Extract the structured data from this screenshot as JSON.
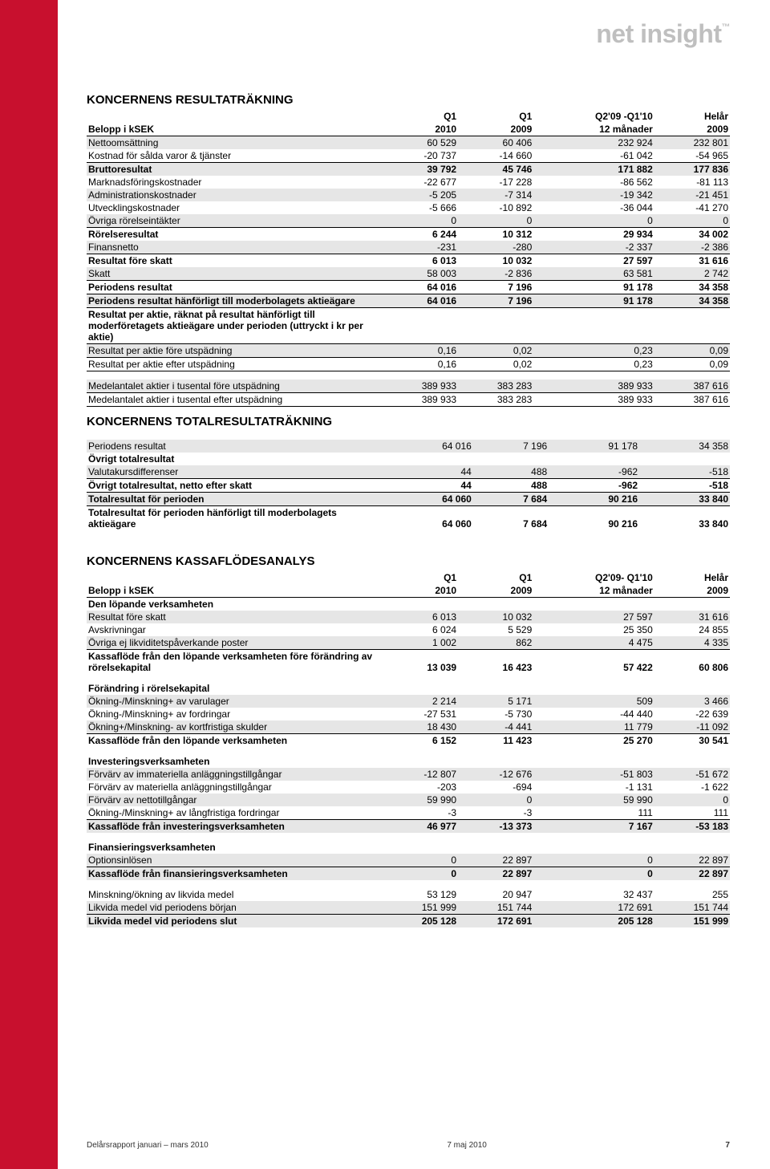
{
  "logo": "net insight",
  "sections": {
    "income": "KONCERNENS RESULTATRÄKNING",
    "total": "KONCERNENS TOTALRESULTATRÄKNING",
    "cashflow": "KONCERNENS KASSAFLÖDESANALYS"
  },
  "col_headers": {
    "c1a": "Q1",
    "c1b": "2010",
    "c2a": "Q1",
    "c2b": "2009",
    "c3a": "Q2'09 -Q1'10",
    "c3b": "12 månader",
    "c3a_cf": "Q2'09- Q1'10",
    "c4a": "Helår",
    "c4b": "2009",
    "row_label": "Belopp i kSEK"
  },
  "income_rows": [
    {
      "label": "Nettoomsättning",
      "v": [
        "60 529",
        "60 406",
        "232 924",
        "232 801"
      ],
      "shade": true
    },
    {
      "label": "Kostnad för sålda varor & tjänster",
      "v": [
        "-20 737",
        "-14 660",
        "-61 042",
        "-54 965"
      ]
    },
    {
      "label": "Bruttoresultat",
      "v": [
        "39 792",
        "45 746",
        "171 882",
        "177 836"
      ],
      "bold": true,
      "shade": true,
      "bt": true
    },
    {
      "label": "Marknadsföringskostnader",
      "v": [
        "-22 677",
        "-17 228",
        "-86 562",
        "-81 113"
      ]
    },
    {
      "label": "Administrationskostnader",
      "v": [
        "-5 205",
        "-7 314",
        "-19 342",
        "-21 451"
      ],
      "shade": true
    },
    {
      "label": "Utvecklingskostnader",
      "v": [
        "-5 666",
        "-10 892",
        "-36 044",
        "-41 270"
      ]
    },
    {
      "label": "Övriga rörelseintäkter",
      "v": [
        "0",
        "0",
        "0",
        "0"
      ],
      "shade": true
    },
    {
      "label": "Rörelseresultat",
      "v": [
        "6 244",
        "10 312",
        "29 934",
        "34 002"
      ],
      "bold": true,
      "bt": true
    },
    {
      "label": "Finansnetto",
      "v": [
        "-231",
        "-280",
        "-2 337",
        "-2 386"
      ],
      "shade": true
    },
    {
      "label": "Resultat före skatt",
      "v": [
        "6 013",
        "10 032",
        "27 597",
        "31 616"
      ],
      "bold": true,
      "bt": true
    },
    {
      "label": "Skatt",
      "v": [
        "58 003",
        "-2 836",
        "63 581",
        "2 742"
      ],
      "shade": true,
      "bb": true
    },
    {
      "label": "Periodens resultat",
      "v": [
        "64 016",
        "7 196",
        "91 178",
        "34 358"
      ],
      "bold": true
    },
    {
      "label": "Periodens resultat hänförligt till moderbolagets aktieägare",
      "v": [
        "64 016",
        "7 196",
        "91 178",
        "34 358"
      ],
      "bold": true,
      "bt": true,
      "shade": true
    },
    {
      "label": "Resultat per aktie, räknat på resultat hänförligt till moderföretagets aktieägare under perioden (uttryckt i kr per aktie)",
      "v": [
        "",
        "",
        "",
        ""
      ],
      "bold": true,
      "bt": true,
      "bb": true
    },
    {
      "label": "Resultat per aktie före utspädning",
      "v": [
        "0,16",
        "0,02",
        "0,23",
        "0,09"
      ],
      "shade": true,
      "bb": true
    },
    {
      "label": "Resultat per aktie efter utspädning",
      "v": [
        "0,16",
        "0,02",
        "0,23",
        "0,09"
      ],
      "bb": true
    },
    {
      "spacer": true
    },
    {
      "label": "Medelantalet aktier i tusental före utspädning",
      "v": [
        "389 933",
        "383 283",
        "389 933",
        "387 616"
      ],
      "bb": true,
      "shade": true
    },
    {
      "label": "Medelantalet aktier i tusental efter utspädning",
      "v": [
        "389 933",
        "383 283",
        "389 933",
        "387 616"
      ],
      "bb": true
    }
  ],
  "total_rows": [
    {
      "spacer": true
    },
    {
      "label": "Periodens resultat",
      "v": [
        "64 016",
        "7 196",
        "91 178",
        "34 358"
      ],
      "shade": true
    },
    {
      "label": "Övrigt totalresultat",
      "v": [
        "",
        "",
        "",
        ""
      ],
      "bold": true
    },
    {
      "label": "Valutakursdifferenser",
      "v": [
        "44",
        "488",
        "-962",
        "-518"
      ],
      "shade": true,
      "bb": true
    },
    {
      "label": "Övrigt totalresultat, netto efter skatt",
      "v": [
        "44",
        "488",
        "-962",
        "-518"
      ],
      "bold": true
    },
    {
      "label": "Totalresultat för perioden",
      "v": [
        "64 060",
        "7 684",
        "90 216",
        "33 840"
      ],
      "bold": true,
      "shade": true,
      "bt": true
    },
    {
      "label": "Totalresultat för perioden hänförligt till moderbolagets aktieägare",
      "v": [
        "64 060",
        "7 684",
        "90 216",
        "33 840"
      ],
      "bold": true,
      "bt": true
    }
  ],
  "cf_rows": [
    {
      "label": "Den löpande verksamheten",
      "v": [
        "",
        "",
        "",
        ""
      ],
      "bold": true
    },
    {
      "label": "Resultat före skatt",
      "v": [
        "6 013",
        "10 032",
        "27 597",
        "31 616"
      ],
      "shade": true
    },
    {
      "label": "Avskrivningar",
      "v": [
        "6 024",
        "5 529",
        "25 350",
        "24 855"
      ]
    },
    {
      "label": "Övriga ej likviditetspåverkande poster",
      "v": [
        "1 002",
        "862",
        "4 475",
        "4 335"
      ],
      "shade": true,
      "bb": true
    },
    {
      "label": "Kassaflöde från den löpande verksamheten före förändring av rörelsekapital",
      "v": [
        "13 039",
        "16 423",
        "57 422",
        "60 806"
      ],
      "bold": true
    },
    {
      "spacer": true
    },
    {
      "label": "Förändring i rörelsekapital",
      "v": [
        "",
        "",
        "",
        ""
      ],
      "bold": true
    },
    {
      "label": "Ökning-/Minskning+ av varulager",
      "v": [
        "2 214",
        "5 171",
        "509",
        "3 466"
      ],
      "shade": true
    },
    {
      "label": "Ökning-/Minskning+ av fordringar",
      "v": [
        "-27 531",
        "-5 730",
        "-44 440",
        "-22 639"
      ]
    },
    {
      "label": "Ökning+/Minskning- av kortfristiga skulder",
      "v": [
        "18 430",
        "-4 441",
        "11 779",
        "-11 092"
      ],
      "shade": true,
      "bb": true
    },
    {
      "label": "Kassaflöde från den löpande verksamheten",
      "v": [
        "6 152",
        "11 423",
        "25 270",
        "30 541"
      ],
      "bold": true
    },
    {
      "spacer": true
    },
    {
      "label": "Investeringsverksamheten",
      "v": [
        "",
        "",
        "",
        ""
      ],
      "bold": true
    },
    {
      "label": "Förvärv av immateriella anläggningstillgångar",
      "v": [
        "-12 807",
        "-12 676",
        "-51 803",
        "-51 672"
      ],
      "shade": true
    },
    {
      "label": "Förvärv av materiella anläggningstillgångar",
      "v": [
        "-203",
        "-694",
        "-1 131",
        "-1 622"
      ]
    },
    {
      "label": "Förvärv av nettotillgångar",
      "v": [
        "59 990",
        "0",
        "59 990",
        "0"
      ],
      "shade": true
    },
    {
      "label": "Ökning-/Minskning+ av långfristiga fordringar",
      "v": [
        "-3",
        "-3",
        "111",
        "111"
      ],
      "bb": true
    },
    {
      "label": "Kassaflöde från investeringsverksamheten",
      "v": [
        "46 977",
        "-13 373",
        "7 167",
        "-53 183"
      ],
      "bold": true,
      "shade": true
    },
    {
      "spacer": true
    },
    {
      "label": "Finansieringsverksamheten",
      "v": [
        "",
        "",
        "",
        ""
      ],
      "bold": true
    },
    {
      "label": "Optionsinlösen",
      "v": [
        "0",
        "22 897",
        "0",
        "22 897"
      ],
      "shade": true,
      "bb": true
    },
    {
      "label": "Kassaflöde från finansieringsverksamheten",
      "v": [
        "0",
        "22 897",
        "0",
        "22 897"
      ],
      "bold": true,
      "shade": true
    },
    {
      "spacer": true
    },
    {
      "label": "Minskning/ökning av likvida medel",
      "v": [
        "53 129",
        "20 947",
        "32 437",
        "255"
      ]
    },
    {
      "label": "Likvida medel vid periodens början",
      "v": [
        "151 999",
        "151 744",
        "172 691",
        "151 744"
      ],
      "shade": true,
      "bb": true
    },
    {
      "label": "Likvida medel vid periodens slut",
      "v": [
        "205 128",
        "172 691",
        "205 128",
        "151 999"
      ],
      "bold": true,
      "shade": true
    }
  ],
  "footer": {
    "left": "Delårsrapport januari – mars 2010",
    "center": "7 maj 2010",
    "page": "7"
  }
}
